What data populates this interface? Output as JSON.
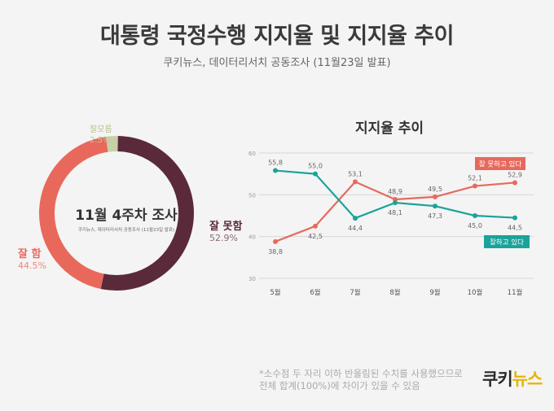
{
  "header": {
    "title": "대통령 국정수행 지지율 및 지지율 추이",
    "subtitle": "쿠키뉴스, 데이터리서치 공동조사 (11월23일 발표)"
  },
  "chart_data": [
    {
      "type": "pie",
      "center_title": "11월 4주차 조사",
      "center_subtitle": "쿠키뉴스, 데이터리서치 공동조사 (11월23일 발표)",
      "slices": [
        {
          "label": "잘 못함",
          "value": 52.9,
          "value_label": "52.9%",
          "color": "#5a2a3a"
        },
        {
          "label": "잘 함",
          "value": 44.5,
          "value_label": "44.5%",
          "color": "#e8695c"
        },
        {
          "label": "잘모름",
          "value": 2.5,
          "value_label": "2.5%",
          "color": "#c8d0a8"
        }
      ]
    },
    {
      "type": "line",
      "title": "지지율 추이",
      "categories": [
        "5월",
        "6월",
        "7월",
        "8월",
        "9월",
        "10월",
        "11월"
      ],
      "ylim": [
        30,
        60
      ],
      "yticks": [
        30,
        40,
        50,
        60
      ],
      "grid": true,
      "series": [
        {
          "name": "잘 못하고 있다",
          "color": "#e8695c",
          "values": [
            38.8,
            42.5,
            53.1,
            48.9,
            49.5,
            52.1,
            52.9
          ],
          "labels": [
            "38,8",
            "42,5",
            "53,1",
            "48,9",
            "49,5",
            "52,1",
            "52,9"
          ]
        },
        {
          "name": "잘하고 있다",
          "color": "#1aa39a",
          "values": [
            55.8,
            55.0,
            44.4,
            48.1,
            47.3,
            45.0,
            44.5
          ],
          "labels": [
            "55,8",
            "55,0",
            "44,4",
            "48,1",
            "47,3",
            "45,0",
            "44,5"
          ]
        }
      ]
    }
  ],
  "footnote": {
    "line1": "*소수점 두 자리 이하 반올림된 수치를 사용했으므로",
    "line2": "전체 합계(100%)에 차이가 있을 수 있음"
  },
  "logo": {
    "part1": "쿠키",
    "part2": "뉴스"
  }
}
